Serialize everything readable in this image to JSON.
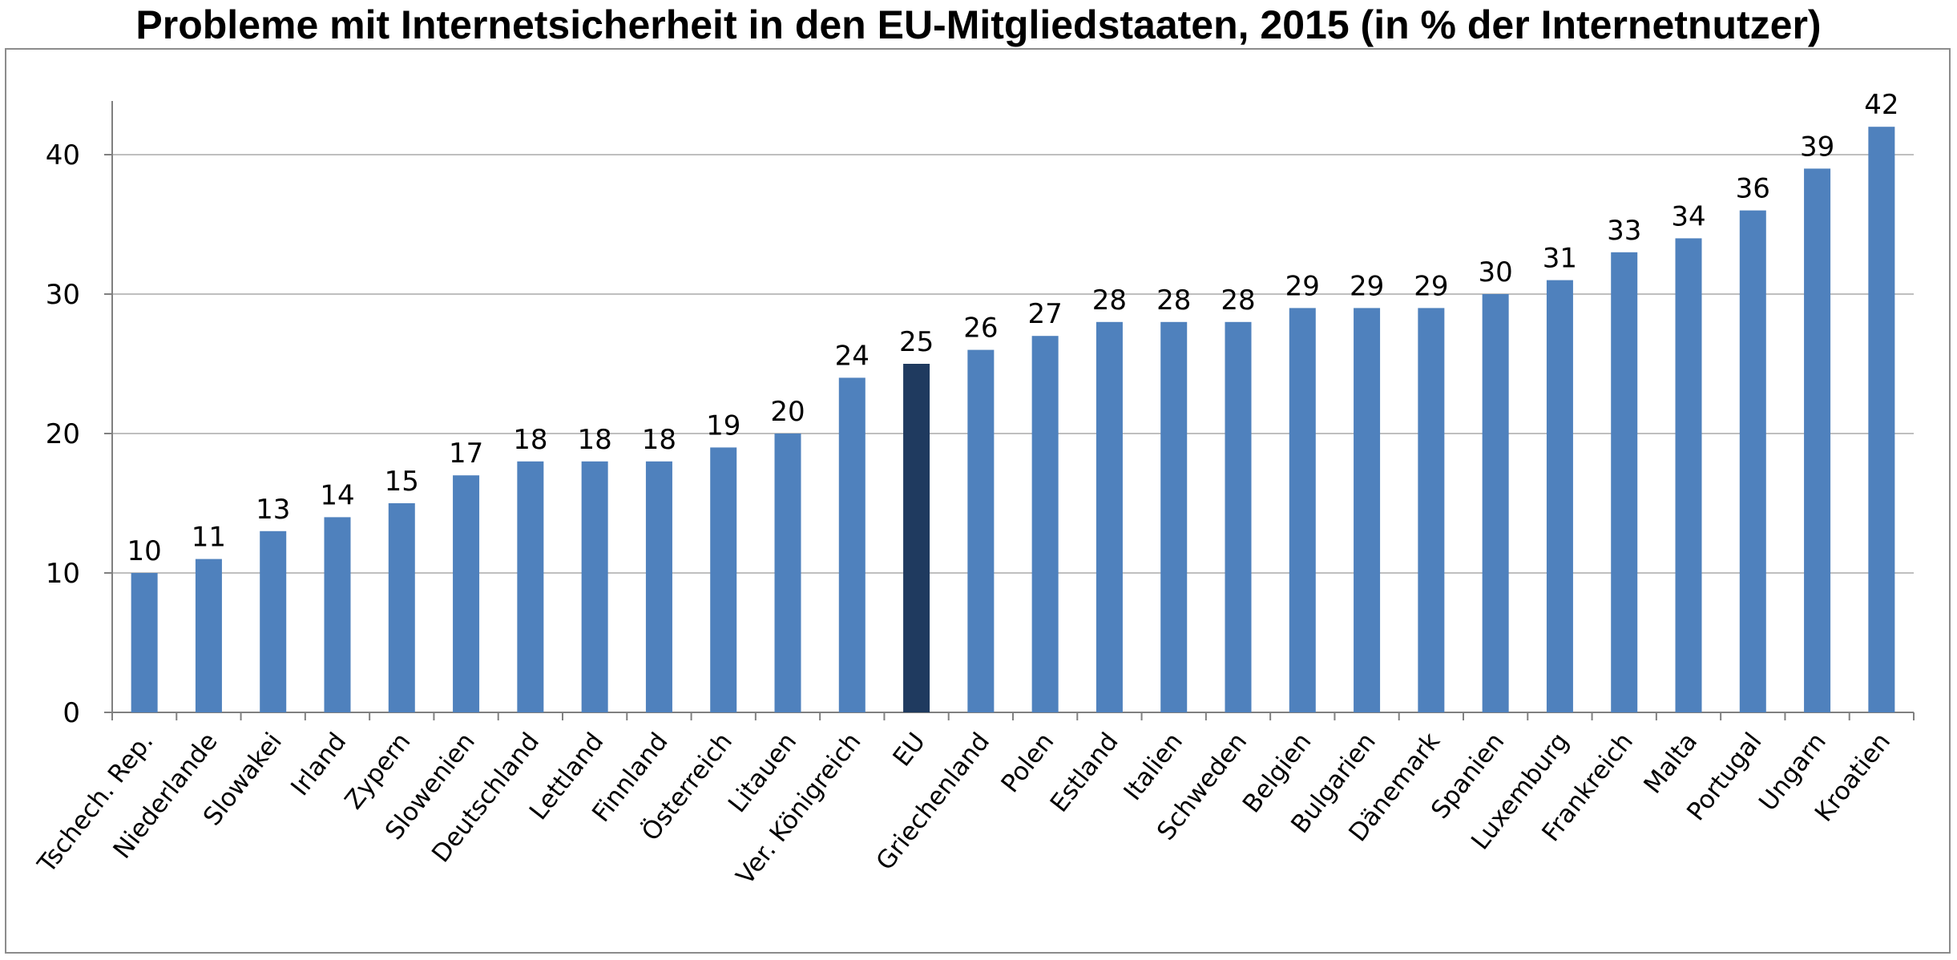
{
  "chart_data": {
    "type": "bar",
    "title": "Probleme mit Internetsicherheit in den EU-Mitgliedstaaten, 2015 (in % der Internetnutzer)",
    "xlabel": "",
    "ylabel": "",
    "ylim": [
      0,
      45
    ],
    "yticks": [
      0,
      10,
      20,
      30,
      40
    ],
    "grid": true,
    "categories": [
      "Tschech. Rep.",
      "Niederlande",
      "Slowakei",
      "Irland",
      "Zypern",
      "Slowenien",
      "Deutschland",
      "Lettland",
      "Finnland",
      "Österreich",
      "Litauen",
      "Ver. Königreich",
      "EU",
      "Griechenland",
      "Polen",
      "Estland",
      "Italien",
      "Schweden",
      "Belgien",
      "Bulgarien",
      "Dänemark",
      "Spanien",
      "Luxemburg",
      "Frankreich",
      "Malta",
      "Portugal",
      "Ungarn",
      "Kroatien"
    ],
    "values": [
      10,
      11,
      13,
      14,
      15,
      17,
      18,
      18,
      18,
      19,
      20,
      24,
      25,
      26,
      27,
      28,
      28,
      28,
      29,
      29,
      29,
      30,
      31,
      33,
      34,
      36,
      39,
      42
    ],
    "highlight_category": "EU",
    "colors": {
      "bar": "#4f81bd",
      "highlight": "#1f3a5f",
      "grid": "#bfbfbf",
      "axis": "#808080"
    }
  }
}
